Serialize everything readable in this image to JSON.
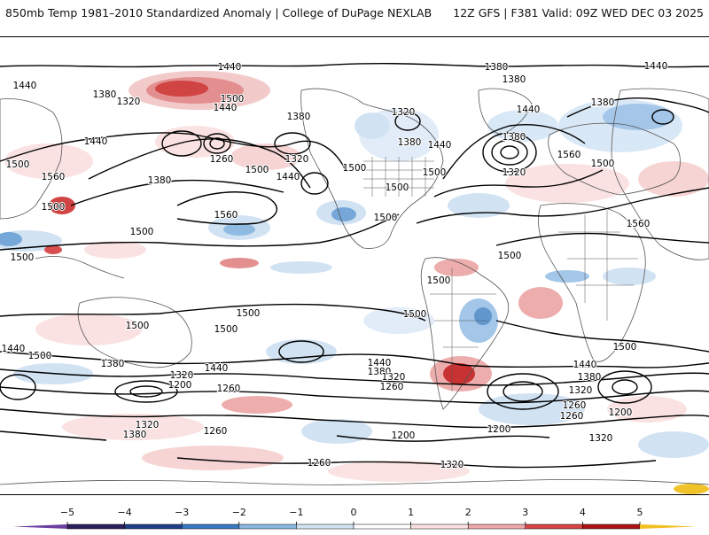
{
  "header": {
    "title": "850mb Temp 1981–2010 Standardized Anomaly | College of DuPage NEXLAB",
    "run_info": "12Z GFS | F381 Valid: 09Z WED DEC 03 2025"
  },
  "colors": {
    "frame": "#000000",
    "contour": "#000000",
    "land_outline": "#555555"
  },
  "contour_labels": [
    {
      "id": "c1",
      "text": "1440"
    },
    {
      "id": "c2",
      "text": "1380"
    },
    {
      "id": "c3",
      "text": "1440"
    },
    {
      "id": "c4",
      "text": "1380"
    },
    {
      "id": "c5",
      "text": "1320"
    },
    {
      "id": "c6",
      "text": "1500"
    },
    {
      "id": "c7",
      "text": "1440"
    },
    {
      "id": "c8",
      "text": "1380"
    },
    {
      "id": "c9",
      "text": "1380"
    },
    {
      "id": "c10",
      "text": "1320"
    },
    {
      "id": "c11",
      "text": "1440"
    },
    {
      "id": "c12",
      "text": "1380"
    },
    {
      "id": "c13",
      "text": "1380"
    },
    {
      "id": "c14",
      "text": "1440"
    },
    {
      "id": "c15",
      "text": "1260"
    },
    {
      "id": "c16",
      "text": "1440"
    },
    {
      "id": "c17",
      "text": "1500"
    },
    {
      "id": "c18",
      "text": "1320"
    },
    {
      "id": "c19",
      "text": "1500"
    },
    {
      "id": "c20",
      "text": "1380"
    },
    {
      "id": "c21",
      "text": "1560"
    },
    {
      "id": "c22",
      "text": "1500"
    },
    {
      "id": "c23",
      "text": "1440"
    },
    {
      "id": "c24",
      "text": "1380"
    },
    {
      "id": "c25",
      "text": "1320"
    },
    {
      "id": "c26",
      "text": "1500"
    },
    {
      "id": "c27",
      "text": "1500"
    },
    {
      "id": "c28",
      "text": "1560"
    },
    {
      "id": "c29",
      "text": "1500"
    },
    {
      "id": "c30",
      "text": "1440"
    },
    {
      "id": "c31",
      "text": "1380"
    },
    {
      "id": "c32",
      "text": "1560"
    },
    {
      "id": "c33",
      "text": "1500"
    },
    {
      "id": "c34",
      "text": "1560"
    },
    {
      "id": "c35",
      "text": "1500"
    },
    {
      "id": "c36",
      "text": "1500"
    },
    {
      "id": "c37",
      "text": "1500"
    },
    {
      "id": "c38",
      "text": "1500"
    },
    {
      "id": "c39",
      "text": "1500"
    },
    {
      "id": "c40",
      "text": "1500"
    },
    {
      "id": "c41",
      "text": "1500"
    },
    {
      "id": "c42",
      "text": "1500"
    },
    {
      "id": "c43",
      "text": "1500"
    },
    {
      "id": "c44",
      "text": "1500"
    },
    {
      "id": "c45",
      "text": "1440"
    },
    {
      "id": "c46",
      "text": "1500"
    },
    {
      "id": "c47",
      "text": "1380"
    },
    {
      "id": "c48",
      "text": "1320"
    },
    {
      "id": "c49",
      "text": "1200"
    },
    {
      "id": "c50",
      "text": "1440"
    },
    {
      "id": "c51",
      "text": "1260"
    },
    {
      "id": "c52",
      "text": "1440"
    },
    {
      "id": "c53",
      "text": "1380"
    },
    {
      "id": "c54",
      "text": "1320"
    },
    {
      "id": "c55",
      "text": "1260"
    },
    {
      "id": "c56",
      "text": "1440"
    },
    {
      "id": "c57",
      "text": "1380"
    },
    {
      "id": "c58",
      "text": "1320"
    },
    {
      "id": "c59",
      "text": "1260"
    },
    {
      "id": "c60",
      "text": "1200"
    },
    {
      "id": "c61",
      "text": "1260"
    },
    {
      "id": "c62",
      "text": "1320"
    },
    {
      "id": "c63",
      "text": "1380"
    },
    {
      "id": "c64",
      "text": "1260"
    },
    {
      "id": "c65",
      "text": "1200"
    },
    {
      "id": "c66",
      "text": "1200"
    },
    {
      "id": "c67",
      "text": "1320"
    },
    {
      "id": "c68",
      "text": "1320"
    },
    {
      "id": "c69",
      "text": "1260"
    }
  ],
  "legend": {
    "ticks": [
      "−5",
      "−4",
      "−3",
      "−2",
      "−1",
      "0",
      "1",
      "2",
      "3",
      "4",
      "5"
    ],
    "bins": [
      {
        "id": "b1",
        "color": "#2a1f5c"
      },
      {
        "id": "b2",
        "color": "#1f3f88"
      },
      {
        "id": "b3",
        "color": "#3b79c4"
      },
      {
        "id": "b4",
        "color": "#8ab8e2"
      },
      {
        "id": "b5",
        "color": "#d2e4f4"
      },
      {
        "id": "b6",
        "color": "#ffffff"
      },
      {
        "id": "b7",
        "color": "#fbe1e1"
      },
      {
        "id": "b8",
        "color": "#eea9a9"
      },
      {
        "id": "b9",
        "color": "#d74545"
      },
      {
        "id": "b10",
        "color": "#ad1414"
      }
    ],
    "under_color": "#6b3fa0",
    "over_color": "#f0c020"
  }
}
